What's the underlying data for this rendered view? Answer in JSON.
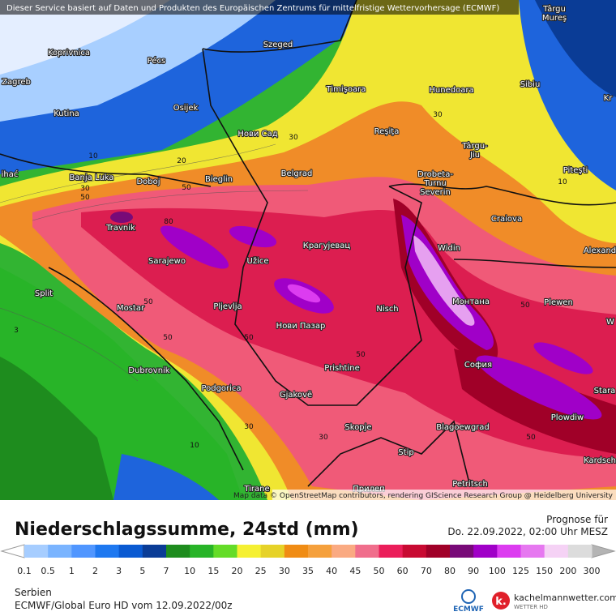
{
  "header": {
    "notice": "Dieser Service basiert auf Daten und Produkten des Europäischen Zentrums für mittelfristige Wettervorhersage (ECMWF)",
    "attribution": "Map data © OpenStreetMap contributors, rendering GIScience Research Group @ Heidelberg University"
  },
  "map": {
    "cities": [
      "Koprivnica",
      "Pécs",
      "Szeged",
      [
        "Târgu",
        "Mureş"
      ],
      "Zagreb",
      "Osijek",
      "Timişoara",
      "Hunedoara",
      "Sibiu",
      "Kr",
      "Kutina",
      "Нови Сад",
      "Reşiţa",
      [
        "Târgu-",
        "Jiu"
      ],
      "Piteşti",
      "ihać",
      "Banja Luka",
      "Doboj",
      "Bieglin",
      "Belgrad",
      [
        "Drobeta-",
        "Turnu",
        "Severin"
      ],
      "Craiova",
      "Travnik",
      "Sarajewo",
      "Užice",
      "Крагујевац",
      "Widin",
      "Alexand",
      "Split",
      "Mostar",
      "Pljevlja",
      "Нови Пазар",
      "Nisch",
      "Монтана",
      "Plewen",
      "W",
      "Dubrovnik",
      "Prishtine",
      "София",
      "Podgorica",
      "Gjakovë",
      "Stara",
      "Plowdiw",
      "Skopje",
      "Blagoewgrad",
      "Stip",
      "Kardsch",
      "Tirane",
      "Прилеп",
      "Petritsch"
    ],
    "contour_labels": [
      30,
      10,
      20,
      30,
      50,
      50,
      80,
      50,
      50,
      50,
      50,
      30,
      50,
      50,
      30,
      30,
      10,
      3,
      10
    ]
  },
  "legend": {
    "labels": [
      0.1,
      0.5,
      1,
      2,
      3,
      5,
      7,
      10,
      15,
      20,
      25,
      30,
      35,
      40,
      45,
      50,
      60,
      70,
      80,
      90,
      100,
      125,
      150,
      200,
      300
    ],
    "colors": [
      "#a6cdff",
      "#7ab4ff",
      "#5096ff",
      "#1e78f0",
      "#0a5ad2",
      "#0a3c96",
      "#1e8c1e",
      "#28b428",
      "#64dc28",
      "#f5f032",
      "#e6d228",
      "#f08c14",
      "#f5a03c",
      "#faaa82",
      "#f06e8c",
      "#eb1e5a",
      "#c80a32",
      "#a00028",
      "#780a78",
      "#a000c8",
      "#dc3cf0",
      "#e678f0",
      "#f5d2f5",
      "#dcdcdc"
    ]
  },
  "footer": {
    "title": "Niederschlagssumme, 24std (mm)",
    "forecast_label": "Prognose für",
    "forecast_time": "Do. 22.09.2022, 02:00 Uhr MESZ",
    "region": "Serbien",
    "model": "ECMWF/Global Euro HD vom  12.09.2022/00z",
    "logo_ecmwf": "ECMWF",
    "logo_site": "kachelmannwetter.com",
    "logo_sub": "WETTER HD"
  }
}
